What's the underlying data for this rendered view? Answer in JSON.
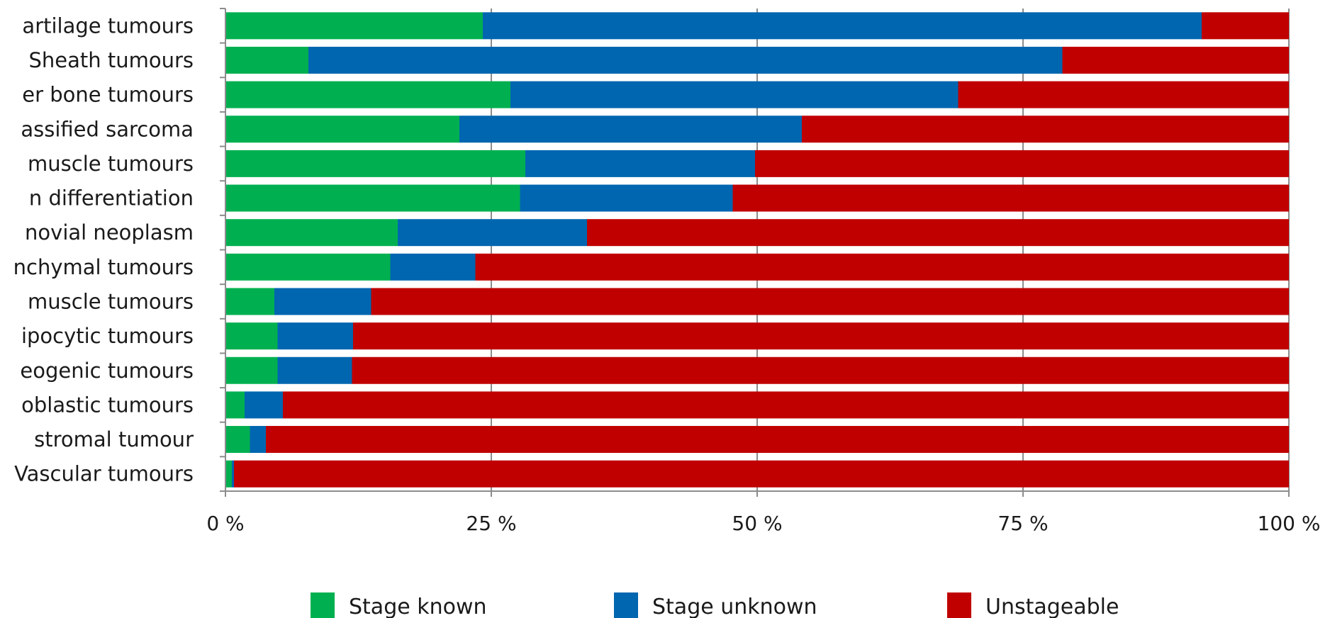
{
  "chart_data": {
    "type": "bar",
    "orientation": "horizontal",
    "stacked": true,
    "normalized": true,
    "categories": [
      "artilage tumours",
      "Sheath tumours",
      "er bone tumours",
      "assified sarcoma",
      "muscle tumours",
      "n differentiation",
      "novial neoplasm",
      "nchymal tumours",
      "muscle tumours",
      "ipocytic tumours",
      "eogenic tumours",
      "oblastic tumours",
      "stromal tumour",
      "Vascular tumours"
    ],
    "series": [
      {
        "name": "Stage known",
        "color": "#00b050",
        "values": [
          24.2,
          7.8,
          26.8,
          22.0,
          28.2,
          27.7,
          16.2,
          15.5,
          4.6,
          4.9,
          4.9,
          1.8,
          2.3,
          0.6
        ]
      },
      {
        "name": "Stage unknown",
        "color": "#0066b0",
        "values": [
          67.6,
          70.9,
          42.1,
          32.2,
          21.6,
          20.0,
          17.8,
          8.0,
          9.1,
          7.1,
          7.0,
          3.6,
          1.5,
          0.2
        ]
      },
      {
        "name": "Unstageable",
        "color": "#c00000",
        "values": [
          8.2,
          21.3,
          31.1,
          45.8,
          50.2,
          52.3,
          66.0,
          76.5,
          86.3,
          88.0,
          88.1,
          94.6,
          96.2,
          99.2
        ]
      }
    ],
    "xlim": [
      0,
      100
    ],
    "xticks": [
      "0 %",
      "25 %",
      "50 %",
      "75 %",
      "100 %"
    ],
    "xtick_values": [
      0,
      25,
      50,
      75,
      100
    ],
    "grid": true,
    "legend_position": "bottom"
  }
}
